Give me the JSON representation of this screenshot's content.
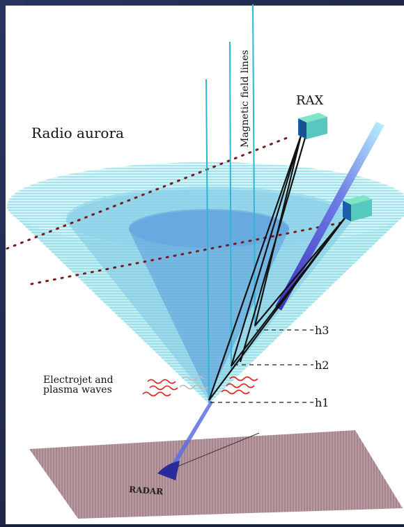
{
  "labels": {
    "radio_aurora": "Radio aurora",
    "magnetic_field_lines": "Magnetic field lines",
    "rax": "RAX",
    "h3": "h3",
    "h2": "h2",
    "h1": "h1",
    "electrojet_line1": "Electrojet and",
    "electrojet_line2": "plasma waves",
    "radar": "RADAR"
  },
  "colors": {
    "background_outer": "#1a2040",
    "background_panel": "#ffffff",
    "cone": "#6fd0dc",
    "cone_inner": "#4a8fd6",
    "field_lines": "#2fb5d6",
    "ground": "#b89aa0",
    "plasma_waves": "#e02020",
    "dotted_orbit": "#8a2020",
    "satellite": "#1a5fa8",
    "radar": "#2a2a9a"
  }
}
